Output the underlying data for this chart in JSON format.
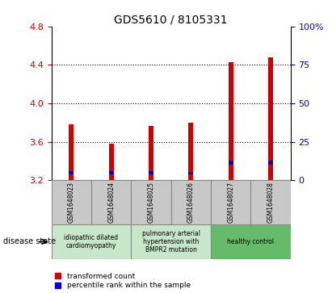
{
  "title": "GDS5610 / 8105331",
  "samples": [
    "GSM1648023",
    "GSM1648024",
    "GSM1648025",
    "GSM1648026",
    "GSM1648027",
    "GSM1648028"
  ],
  "bar_bottoms": [
    3.2,
    3.2,
    3.2,
    3.2,
    3.2,
    3.2
  ],
  "red_tops": [
    3.785,
    3.58,
    3.765,
    3.8,
    4.43,
    4.48
  ],
  "blue_bottoms": [
    3.265,
    3.26,
    3.265,
    3.26,
    3.36,
    3.36
  ],
  "blue_tops": [
    3.295,
    3.295,
    3.295,
    3.29,
    3.405,
    3.405
  ],
  "ylim_left": [
    3.2,
    4.8
  ],
  "ylim_right": [
    0,
    100
  ],
  "yticks_left": [
    3.2,
    3.6,
    4.0,
    4.4,
    4.8
  ],
  "yticks_right": [
    0,
    25,
    50,
    75,
    100
  ],
  "ytick_labels_right": [
    "0",
    "25",
    "50",
    "75",
    "100%"
  ],
  "grid_lines": [
    3.6,
    4.0,
    4.4
  ],
  "bar_width": 0.12,
  "red_color": "#cc0000",
  "blue_color": "#0000cc",
  "disease_groups": [
    {
      "label": "idiopathic dilated\ncardiomyopathy",
      "indices": [
        0,
        1
      ],
      "color": "#c8e6c9"
    },
    {
      "label": "pulmonary arterial\nhypertension with\nBMPR2 mutation",
      "indices": [
        2,
        3
      ],
      "color": "#c8e6c9"
    },
    {
      "label": "healthy control",
      "indices": [
        4,
        5
      ],
      "color": "#66bb6a"
    }
  ],
  "legend_red_label": "transformed count",
  "legend_blue_label": "percentile rank within the sample",
  "disease_state_label": "disease state",
  "background_color": "#ffffff",
  "plot_bg": "#ffffff",
  "tick_color_left": "#cc0000",
  "tick_color_right": "#0000cc",
  "sample_box_color": "#c8c8c8",
  "sample_box_edge": "#888888"
}
